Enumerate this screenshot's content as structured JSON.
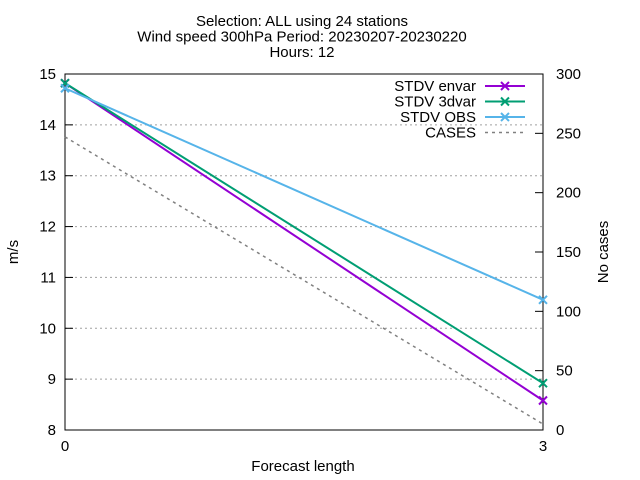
{
  "chart_data": {
    "type": "line",
    "title_lines": [
      "Selection: ALL using    24 stations",
      "Wind speed 300hPa   Period: 20230207-20230220",
      "Hours: 12"
    ],
    "xlabel": "Forecast length",
    "ylabel": "m/s",
    "y2label": "No cases",
    "x": [
      0,
      3
    ],
    "x_ticks": [
      0,
      3
    ],
    "ylim": [
      8,
      15
    ],
    "y_ticks": [
      8,
      9,
      10,
      11,
      12,
      13,
      14,
      15
    ],
    "y2lim": [
      0,
      300
    ],
    "y2_ticks": [
      0,
      50,
      100,
      150,
      200,
      250,
      300
    ],
    "grid": true,
    "legend_position": "top-right",
    "series": [
      {
        "name": "STDV envar",
        "axis": "y",
        "values": [
          14.82,
          8.58
        ],
        "color": "#9400d3",
        "style": "solid",
        "marker": "x"
      },
      {
        "name": "STDV 3dvar",
        "axis": "y",
        "values": [
          14.82,
          8.92
        ],
        "color": "#009e73",
        "style": "solid",
        "marker": "x"
      },
      {
        "name": "STDV OBS",
        "axis": "y",
        "values": [
          14.72,
          10.56
        ],
        "color": "#56b4e9",
        "style": "solid",
        "marker": "x"
      },
      {
        "name": "CASES",
        "axis": "y2",
        "values": [
          247,
          5
        ],
        "color": "#808080",
        "style": "dashed",
        "marker": "none"
      }
    ]
  }
}
